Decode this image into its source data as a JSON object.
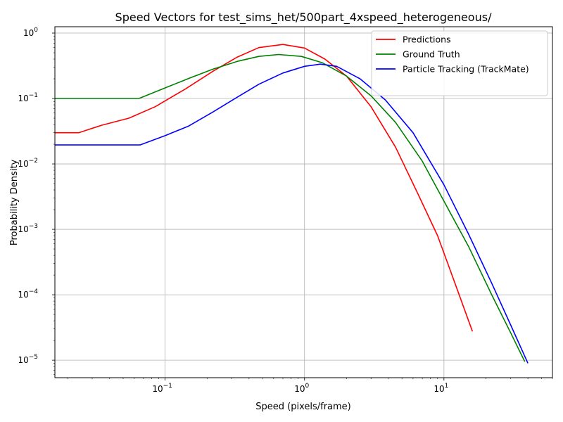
{
  "chart_data": {
    "type": "line",
    "title": "Speed Vectors for test_sims_het/500part_4xspeed_heterogeneous/",
    "xlabel": "Speed (pixels/frame)",
    "ylabel": "Probability Density",
    "xscale": "log",
    "yscale": "log",
    "xlim": [
      0.0162,
      60
    ],
    "ylim": [
      5.4e-06,
      1.25
    ],
    "grid": true,
    "legend": "top-right",
    "x_ticks": [
      {
        "value": 0.1,
        "base": "10",
        "exp": "−1"
      },
      {
        "value": 1,
        "base": "10",
        "exp": "0"
      },
      {
        "value": 10,
        "base": "10",
        "exp": "1"
      }
    ],
    "y_ticks": [
      {
        "value": 1e-05,
        "base": "10",
        "exp": "−5"
      },
      {
        "value": 0.0001,
        "base": "10",
        "exp": "−4"
      },
      {
        "value": 0.001,
        "base": "10",
        "exp": "−3"
      },
      {
        "value": 0.01,
        "base": "10",
        "exp": "−2"
      },
      {
        "value": 0.1,
        "base": "10",
        "exp": "−1"
      },
      {
        "value": 1,
        "base": "10",
        "exp": "0"
      }
    ],
    "series": [
      {
        "name": "Predictions",
        "color": "#ff0000",
        "points": [
          [
            0.0162,
            0.03
          ],
          [
            0.024,
            0.03
          ],
          [
            0.035,
            0.039
          ],
          [
            0.055,
            0.05
          ],
          [
            0.085,
            0.075
          ],
          [
            0.14,
            0.14
          ],
          [
            0.22,
            0.26
          ],
          [
            0.33,
            0.43
          ],
          [
            0.47,
            0.6
          ],
          [
            0.7,
            0.67
          ],
          [
            1.0,
            0.59
          ],
          [
            1.4,
            0.4
          ],
          [
            2.0,
            0.22
          ],
          [
            3.0,
            0.075
          ],
          [
            4.5,
            0.018
          ],
          [
            6.5,
            0.0035
          ],
          [
            9.0,
            0.0008
          ],
          [
            12.0,
            0.00015
          ],
          [
            16.0,
            2.75e-05
          ]
        ]
      },
      {
        "name": "Ground Truth",
        "color": "#008000",
        "points": [
          [
            0.0162,
            0.1
          ],
          [
            0.065,
            0.1
          ],
          [
            0.1,
            0.145
          ],
          [
            0.15,
            0.205
          ],
          [
            0.22,
            0.28
          ],
          [
            0.33,
            0.37
          ],
          [
            0.47,
            0.44
          ],
          [
            0.65,
            0.47
          ],
          [
            0.95,
            0.44
          ],
          [
            1.35,
            0.35
          ],
          [
            2.0,
            0.22
          ],
          [
            3.0,
            0.11
          ],
          [
            4.5,
            0.043
          ],
          [
            7.0,
            0.011
          ],
          [
            10.0,
            0.0027
          ],
          [
            15.0,
            0.00055
          ],
          [
            22.0,
            0.0001
          ],
          [
            30.0,
            2.65e-05
          ],
          [
            38.0,
            9.5e-06
          ]
        ]
      },
      {
        "name": "Particle Tracking (TrackMate)",
        "color": "#0000ff",
        "points": [
          [
            0.0162,
            0.0195
          ],
          [
            0.066,
            0.0195
          ],
          [
            0.1,
            0.027
          ],
          [
            0.148,
            0.038
          ],
          [
            0.22,
            0.062
          ],
          [
            0.33,
            0.105
          ],
          [
            0.47,
            0.165
          ],
          [
            0.7,
            0.245
          ],
          [
            1.0,
            0.31
          ],
          [
            1.3,
            0.335
          ],
          [
            1.7,
            0.31
          ],
          [
            2.5,
            0.2
          ],
          [
            3.8,
            0.095
          ],
          [
            6.0,
            0.03
          ],
          [
            10.0,
            0.0048
          ],
          [
            15.0,
            0.00085
          ],
          [
            22.0,
            0.00015
          ],
          [
            30.0,
            3.5e-05
          ],
          [
            40.0,
            9e-06
          ]
        ]
      }
    ]
  }
}
